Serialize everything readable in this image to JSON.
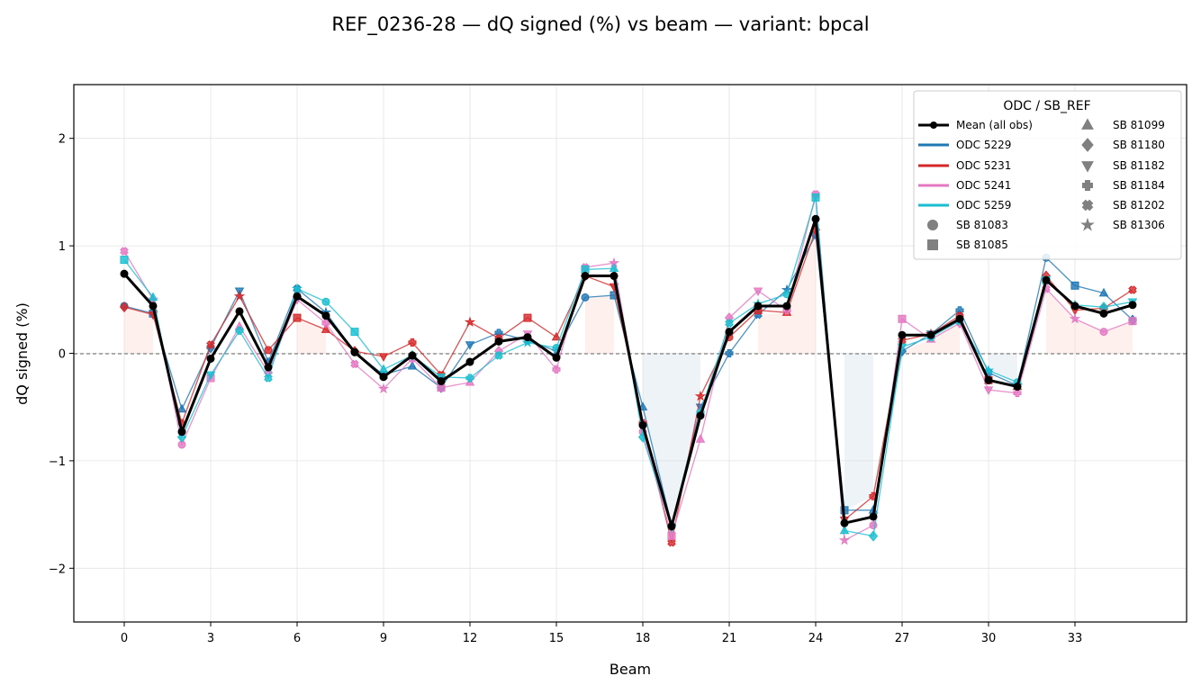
{
  "chart_data": {
    "type": "line",
    "title": "REF_0236-28  —  dQ signed (%) vs beam  —  variant: bpcal",
    "xlabel": "Beam",
    "ylabel": "dQ signed (%)",
    "xlim": [
      -1.75,
      36.875
    ],
    "ylim": [
      -2.5,
      2.5
    ],
    "xticks": [
      0,
      3,
      6,
      9,
      12,
      15,
      18,
      21,
      24,
      27,
      30,
      33
    ],
    "yticks": [
      -2,
      -1,
      0,
      1,
      2
    ],
    "ytick_labels": [
      "−2",
      "−1",
      "0",
      "1",
      "2"
    ],
    "grid": true,
    "legend_title": "ODC / SB_REF",
    "legend_position": "top-right",
    "x": [
      0,
      1,
      2,
      3,
      4,
      5,
      6,
      7,
      8,
      9,
      10,
      11,
      12,
      13,
      14,
      15,
      16,
      17,
      18,
      19,
      20,
      21,
      22,
      23,
      24,
      25,
      26,
      27,
      28,
      29,
      30,
      31,
      32,
      33,
      34,
      35
    ],
    "mean": {
      "name": "Mean (all obs)",
      "color": "#000000",
      "values": [
        0.74,
        0.44,
        -0.73,
        -0.05,
        0.39,
        -0.13,
        0.53,
        0.35,
        0.01,
        -0.22,
        -0.02,
        -0.26,
        -0.08,
        0.11,
        0.15,
        -0.04,
        0.72,
        0.72,
        -0.67,
        -1.61,
        -0.58,
        0.2,
        0.44,
        0.44,
        1.25,
        -1.58,
        -1.52,
        0.17,
        0.17,
        0.32,
        -0.25,
        -0.31,
        0.68,
        0.44,
        0.37,
        0.45
      ]
    },
    "series": [
      {
        "name": "ODC 5229",
        "color": "#1f77b4",
        "values": [
          0.44,
          0.37,
          -0.52,
          0.05,
          0.58,
          -0.08,
          0.6,
          0.38,
          0.01,
          -0.2,
          -0.12,
          -0.32,
          0.08,
          0.19,
          0.12,
          0.02,
          0.52,
          0.54,
          -0.5,
          -1.6,
          -0.5,
          0.0,
          0.36,
          0.59,
          1.1,
          -1.46,
          -1.46,
          0.02,
          0.18,
          0.4,
          -0.18,
          -0.3,
          0.89,
          0.63,
          0.56,
          0.31
        ]
      },
      {
        "name": "ODC 5231",
        "color": "#d62728",
        "values": [
          0.43,
          0.36,
          -0.65,
          0.08,
          0.53,
          0.03,
          0.33,
          0.22,
          0.02,
          -0.03,
          0.1,
          -0.2,
          0.29,
          0.14,
          0.33,
          0.15,
          0.72,
          0.62,
          -0.65,
          -1.76,
          -0.4,
          0.15,
          0.4,
          0.38,
          1.15,
          -1.55,
          -1.33,
          0.12,
          0.18,
          0.35,
          -0.25,
          -0.31,
          0.72,
          0.4,
          0.42,
          0.59
        ]
      },
      {
        "name": "ODC 5241",
        "color": "#e377c2",
        "values": [
          0.95,
          0.5,
          -0.85,
          -0.23,
          0.25,
          -0.18,
          0.5,
          0.28,
          -0.1,
          -0.33,
          -0.05,
          -0.32,
          -0.27,
          0.02,
          0.18,
          -0.15,
          0.8,
          0.84,
          -0.73,
          -1.7,
          -0.8,
          0.33,
          0.58,
          0.4,
          1.48,
          -1.74,
          -1.6,
          0.32,
          0.13,
          0.28,
          -0.34,
          -0.37,
          0.6,
          0.32,
          0.2,
          0.3
        ]
      },
      {
        "name": "ODC 5259",
        "color": "#17becf",
        "values": [
          0.87,
          0.52,
          -0.78,
          -0.2,
          0.21,
          -0.23,
          0.6,
          0.48,
          0.2,
          -0.15,
          -0.02,
          -0.22,
          -0.23,
          -0.02,
          0.1,
          0.05,
          0.78,
          0.79,
          -0.78,
          -1.62,
          -0.55,
          0.28,
          0.46,
          0.55,
          1.45,
          -1.65,
          -1.7,
          0.06,
          0.15,
          0.3,
          -0.16,
          -0.27,
          0.68,
          0.45,
          0.43,
          0.48
        ]
      }
    ],
    "marker_legend": [
      {
        "name": "SB 81083",
        "marker": "circle"
      },
      {
        "name": "SB 81085",
        "marker": "square"
      },
      {
        "name": "SB 81099",
        "marker": "triangle-up"
      },
      {
        "name": "SB 81180",
        "marker": "diamond"
      },
      {
        "name": "SB 81182",
        "marker": "triangle-down"
      },
      {
        "name": "SB 81184",
        "marker": "plus"
      },
      {
        "name": "SB 81202",
        "marker": "x"
      },
      {
        "name": "SB 81306",
        "marker": "star"
      }
    ],
    "pos_fill_color": "#fdd9d3",
    "neg_fill_color": "#d4e2ec"
  }
}
